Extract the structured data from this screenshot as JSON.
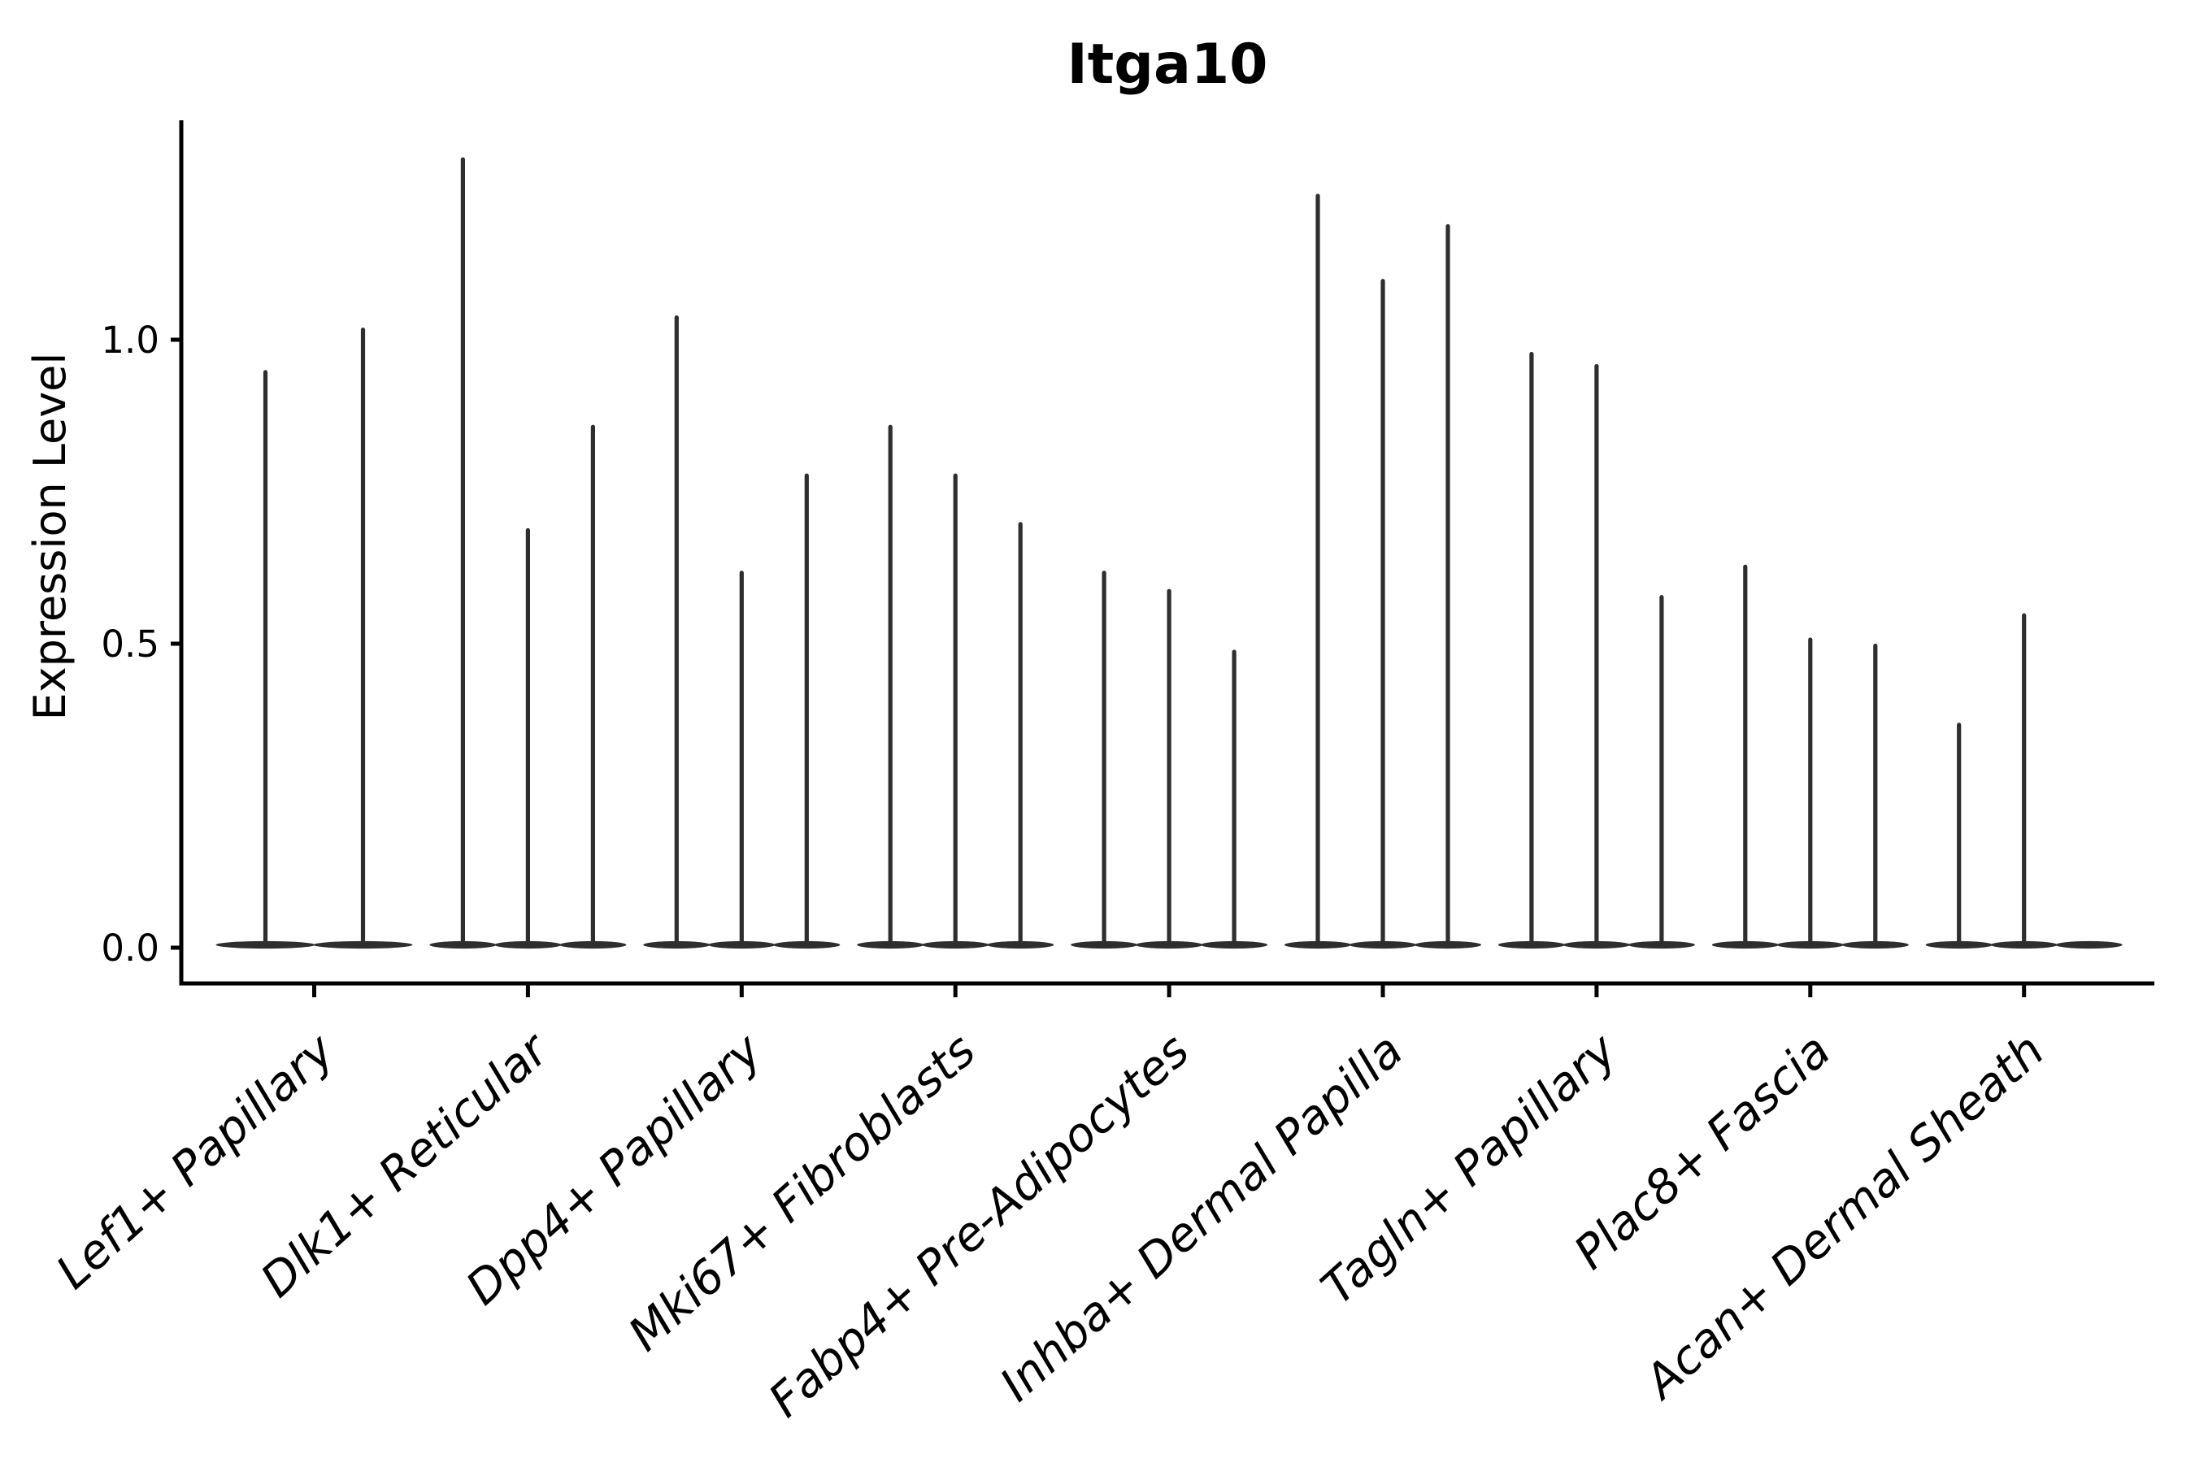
{
  "title": "Itga10",
  "y_axis": {
    "label": "Expression Level",
    "tick_labels": [
      "0.0",
      "0.5",
      "1.0"
    ],
    "tick_values": [
      0.0,
      0.5,
      1.0
    ]
  },
  "colors": {
    "ink": "#000000",
    "violin": "#2e2e2e",
    "background": "#ffffff"
  },
  "chart_data": {
    "type": "violin",
    "title": "Itga10",
    "xlabel": "",
    "ylabel": "Expression Level",
    "ylim": [
      -0.06,
      1.36
    ],
    "yticks": [
      0.0,
      0.5,
      1.0
    ],
    "grid": false,
    "legend": false,
    "categories": [
      "Lef1+ Papillary",
      "Dlk1+ Reticular",
      "Dpp4+ Papillary",
      "Mki67+ Fibroblasts",
      "Fabp4+ Pre-Adipocytes",
      "Inhba+ Dermal Papilla",
      "Tagln+ Papillary",
      "Plac8+ Fascia",
      "Acan+ Dermal Sheath"
    ],
    "groups": [
      {
        "category": "Lef1+ Papillary",
        "violin_max_values": [
          0.95,
          1.02
        ]
      },
      {
        "category": "Dlk1+ Reticular",
        "violin_max_values": [
          1.3,
          0.69,
          0.86
        ]
      },
      {
        "category": "Dpp4+ Papillary",
        "violin_max_values": [
          1.04,
          0.62,
          0.78
        ]
      },
      {
        "category": "Mki67+ Fibroblasts",
        "violin_max_values": [
          0.86,
          0.78,
          0.7
        ]
      },
      {
        "category": "Fabp4+ Pre-Adipocytes",
        "violin_max_values": [
          0.62,
          0.59,
          0.49
        ]
      },
      {
        "category": "Inhba+ Dermal Papilla",
        "violin_max_values": [
          1.24,
          1.1,
          1.19
        ]
      },
      {
        "category": "Tagln+ Papillary",
        "violin_max_values": [
          0.98,
          0.96,
          0.58
        ]
      },
      {
        "category": "Plac8+ Fascia",
        "violin_max_values": [
          0.63,
          0.51,
          0.5
        ]
      },
      {
        "category": "Acan+ Dermal Sheath",
        "violin_max_values": [
          0.37,
          0.55,
          0.0
        ]
      }
    ],
    "description": "Each category shows thin violins of mostly-zero expression: a wide flat density bump at 0 plus a narrow spike reaching the listed maximum expression value; a value of 0.0 is a flat violin with no spike."
  }
}
